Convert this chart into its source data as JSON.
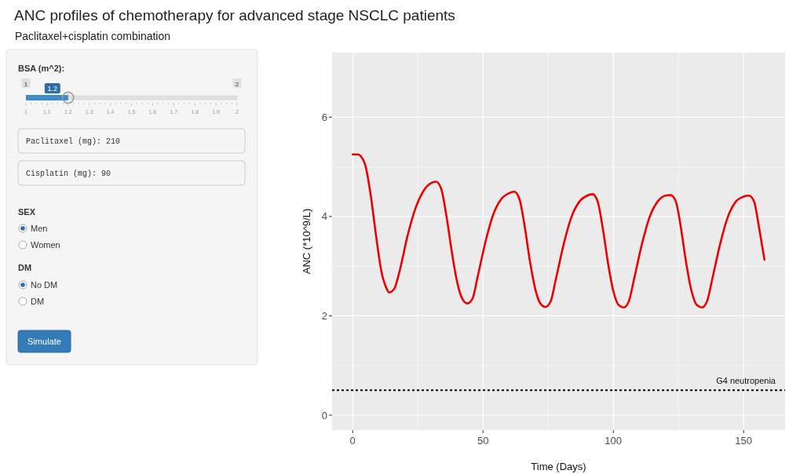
{
  "chart_data": [
    {
      "type": "other",
      "title": "ANC profiles of chemotherapy for advanced stage NSCLC patients",
      "subtitle": "Paclitaxel+cisplatin combination"
    },
    {
      "type": "bar",
      "orientation": "horizontal",
      "title": "BSA (m^2):",
      "categories": [
        null
      ],
      "values": [
        0.2
      ],
      "base": [
        1
      ],
      "color": "#428bca",
      "value_labels": [
        "1.2"
      ],
      "xlim": [
        1,
        2
      ],
      "xticks": [
        1,
        1.1,
        1.2,
        1.3,
        1.4,
        1.5,
        1.6,
        1.7,
        1.8,
        1.9,
        2
      ],
      "x2lim": [
        1,
        2
      ],
      "x2ticks": [
        1,
        2
      ]
    },
    {
      "type": "other",
      "annotations": [
        "Paclitaxel (mg): 210",
        "Cisplatin (mg): 90",
        "SEX",
        "Men",
        "Women",
        "DM",
        "No DM",
        "DM",
        "Simulate"
      ]
    },
    {
      "type": "line",
      "xlabel": "Time (Days)",
      "ylabel": "ANC (*10^9/L)",
      "xlim": [
        -7.9,
        165.9
      ],
      "ylim": [
        -0.3,
        7.3
      ],
      "xticks": [
        0,
        50,
        100,
        150
      ],
      "yticks": [
        0,
        2,
        4,
        6
      ],
      "grid": true,
      "line_style": "solid",
      "marker": "none",
      "series": [
        {
          "color": "#ee0000",
          "x": [
            0,
            2,
            3,
            5,
            7,
            9,
            11,
            13,
            14,
            16,
            18,
            21,
            24,
            27,
            30,
            32,
            34,
            36,
            38,
            40,
            42,
            44,
            46,
            48,
            51,
            54,
            57,
            60,
            62,
            64,
            66,
            68,
            70,
            72,
            74,
            76,
            78,
            81,
            84,
            87,
            90,
            92,
            94,
            96,
            98,
            100,
            102,
            104,
            106,
            108,
            111,
            114,
            117,
            120,
            122,
            124,
            126,
            128,
            130,
            132,
            134,
            136,
            138,
            141,
            144,
            147,
            150,
            152,
            154,
            156,
            158
          ],
          "values": [
            5.25,
            5.25,
            5.22,
            5.0,
            4.4,
            3.6,
            2.9,
            2.55,
            2.47,
            2.55,
            2.9,
            3.6,
            4.15,
            4.5,
            4.67,
            4.7,
            4.55,
            4.0,
            3.3,
            2.7,
            2.35,
            2.25,
            2.35,
            2.8,
            3.5,
            4.05,
            4.35,
            4.47,
            4.5,
            4.35,
            3.8,
            3.1,
            2.55,
            2.25,
            2.18,
            2.3,
            2.75,
            3.45,
            4.0,
            4.3,
            4.42,
            4.45,
            4.3,
            3.75,
            3.05,
            2.5,
            2.22,
            2.17,
            2.3,
            2.75,
            3.45,
            4.0,
            4.3,
            4.42,
            4.43,
            4.3,
            3.75,
            3.05,
            2.5,
            2.22,
            2.17,
            2.3,
            2.75,
            3.45,
            4.0,
            4.3,
            4.4,
            4.42,
            4.3,
            3.75,
            3.13
          ]
        }
      ],
      "ref_lines": [
        {
          "axis": "y",
          "value": 0.5,
          "label": "G4 neutropenia",
          "color": "#000000",
          "line_style": "dotted"
        }
      ]
    }
  ]
}
